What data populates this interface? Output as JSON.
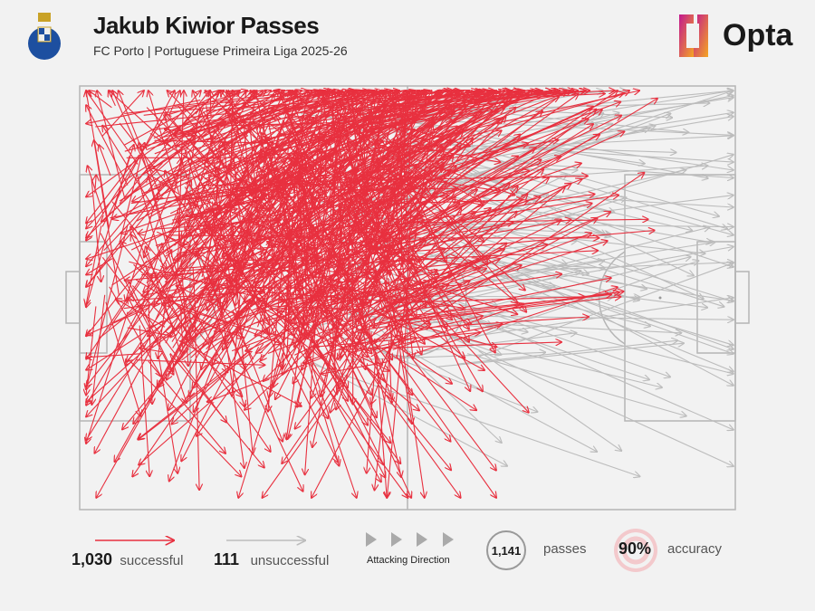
{
  "header": {
    "title": "Jakub Kiwior Passes",
    "subtitle": "FC Porto | Portuguese Primeira Liga 2025-26",
    "logo_text": "Opta"
  },
  "legend": {
    "successful_count": "1,030",
    "successful_label": "successful",
    "unsuccessful_count": "111",
    "unsuccessful_label": "unsuccessful",
    "direction_label": "Attacking Direction",
    "total_passes": "1,141",
    "passes_label": "passes",
    "accuracy": "90%",
    "accuracy_label": "accuracy"
  },
  "colors": {
    "successful": "#e8303f",
    "unsuccessful": "#bcbcbc",
    "pitch_lines": "#b5b5b5",
    "background": "#f2f2f2"
  },
  "chart_data": {
    "type": "pass-map",
    "series": [
      {
        "name": "successful",
        "count": 1030
      },
      {
        "name": "unsuccessful",
        "count": 111
      }
    ],
    "total": 1141,
    "accuracy_pct": 90,
    "attacking_direction": "left-to-right"
  }
}
